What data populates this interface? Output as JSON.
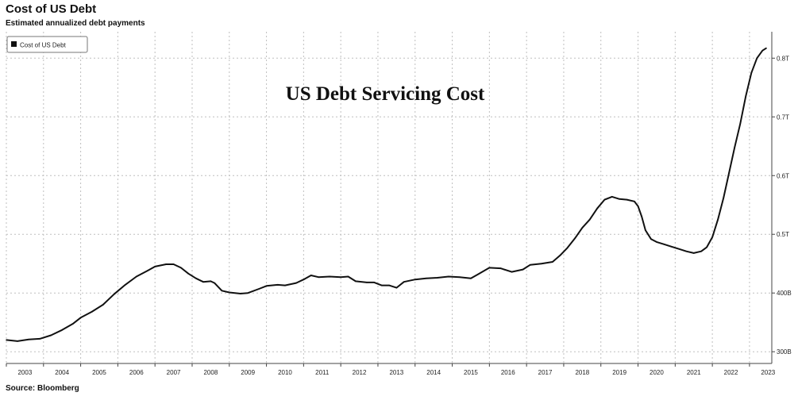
{
  "header": {
    "title": "Cost of US Debt",
    "subtitle": "Estimated annualized debt payments"
  },
  "overlay_title": "US Debt Servicing Cost",
  "footer": {
    "source": "Source: Bloomberg"
  },
  "colors": {
    "line": "#111111",
    "grid": "#bfbfbf",
    "axis": "#444444",
    "background": "#ffffff"
  },
  "chart_data": {
    "type": "line",
    "title": "Cost of US Debt",
    "subtitle": "Estimated annualized debt payments",
    "xlabel": "",
    "ylabel": "",
    "x_ticks": [
      "2003",
      "2004",
      "2005",
      "2006",
      "2007",
      "2008",
      "2009",
      "2010",
      "2011",
      "2012",
      "2013",
      "2014",
      "2015",
      "2016",
      "2017",
      "2018",
      "2019",
      "2020",
      "2021",
      "2022",
      "2023"
    ],
    "y_ticks": [
      {
        "value": 300,
        "label": "300B"
      },
      {
        "value": 400,
        "label": "400B"
      },
      {
        "value": 500,
        "label": "0.5T"
      },
      {
        "value": 600,
        "label": "0.6T"
      },
      {
        "value": 700,
        "label": "0.7T"
      },
      {
        "value": 800,
        "label": "0.8T"
      }
    ],
    "ylim": [
      280,
      845
    ],
    "xlim": [
      2003.0,
      2023.6
    ],
    "grid": true,
    "legend_position": "top-left",
    "series": [
      {
        "name": "Cost of US Debt",
        "points": [
          [
            2003.0,
            320
          ],
          [
            2003.3,
            318
          ],
          [
            2003.6,
            321
          ],
          [
            2003.9,
            322
          ],
          [
            2004.2,
            328
          ],
          [
            2004.5,
            337
          ],
          [
            2004.8,
            348
          ],
          [
            2005.0,
            358
          ],
          [
            2005.3,
            368
          ],
          [
            2005.6,
            380
          ],
          [
            2005.9,
            398
          ],
          [
            2006.2,
            414
          ],
          [
            2006.5,
            428
          ],
          [
            2006.8,
            438
          ],
          [
            2007.0,
            445
          ],
          [
            2007.3,
            449
          ],
          [
            2007.5,
            449
          ],
          [
            2007.7,
            443
          ],
          [
            2007.9,
            433
          ],
          [
            2008.1,
            425
          ],
          [
            2008.3,
            419
          ],
          [
            2008.5,
            420
          ],
          [
            2008.6,
            417
          ],
          [
            2008.8,
            404
          ],
          [
            2009.0,
            401
          ],
          [
            2009.3,
            399
          ],
          [
            2009.5,
            400
          ],
          [
            2009.8,
            407
          ],
          [
            2010.0,
            412
          ],
          [
            2010.3,
            414
          ],
          [
            2010.5,
            413
          ],
          [
            2010.8,
            417
          ],
          [
            2011.0,
            423
          ],
          [
            2011.2,
            430
          ],
          [
            2011.4,
            427
          ],
          [
            2011.7,
            428
          ],
          [
            2012.0,
            427
          ],
          [
            2012.2,
            428
          ],
          [
            2012.4,
            420
          ],
          [
            2012.7,
            418
          ],
          [
            2012.9,
            418
          ],
          [
            2013.1,
            413
          ],
          [
            2013.3,
            413
          ],
          [
            2013.5,
            409
          ],
          [
            2013.7,
            419
          ],
          [
            2014.0,
            423
          ],
          [
            2014.3,
            425
          ],
          [
            2014.6,
            426
          ],
          [
            2014.9,
            428
          ],
          [
            2015.2,
            427
          ],
          [
            2015.5,
            425
          ],
          [
            2015.7,
            432
          ],
          [
            2016.0,
            443
          ],
          [
            2016.3,
            442
          ],
          [
            2016.6,
            436
          ],
          [
            2016.9,
            440
          ],
          [
            2017.1,
            448
          ],
          [
            2017.4,
            450
          ],
          [
            2017.7,
            453
          ],
          [
            2017.9,
            464
          ],
          [
            2018.1,
            477
          ],
          [
            2018.3,
            493
          ],
          [
            2018.5,
            511
          ],
          [
            2018.7,
            525
          ],
          [
            2018.9,
            544
          ],
          [
            2019.1,
            559
          ],
          [
            2019.3,
            564
          ],
          [
            2019.5,
            560
          ],
          [
            2019.7,
            559
          ],
          [
            2019.9,
            556
          ],
          [
            2020.0,
            548
          ],
          [
            2020.1,
            530
          ],
          [
            2020.2,
            507
          ],
          [
            2020.35,
            492
          ],
          [
            2020.5,
            487
          ],
          [
            2020.7,
            483
          ],
          [
            2020.9,
            479
          ],
          [
            2021.1,
            475
          ],
          [
            2021.3,
            471
          ],
          [
            2021.5,
            468
          ],
          [
            2021.7,
            471
          ],
          [
            2021.85,
            478
          ],
          [
            2022.0,
            495
          ],
          [
            2022.15,
            525
          ],
          [
            2022.3,
            562
          ],
          [
            2022.45,
            605
          ],
          [
            2022.6,
            648
          ],
          [
            2022.75,
            688
          ],
          [
            2022.9,
            735
          ],
          [
            2023.05,
            775
          ],
          [
            2023.2,
            800
          ],
          [
            2023.35,
            813
          ],
          [
            2023.45,
            817
          ]
        ]
      }
    ]
  }
}
